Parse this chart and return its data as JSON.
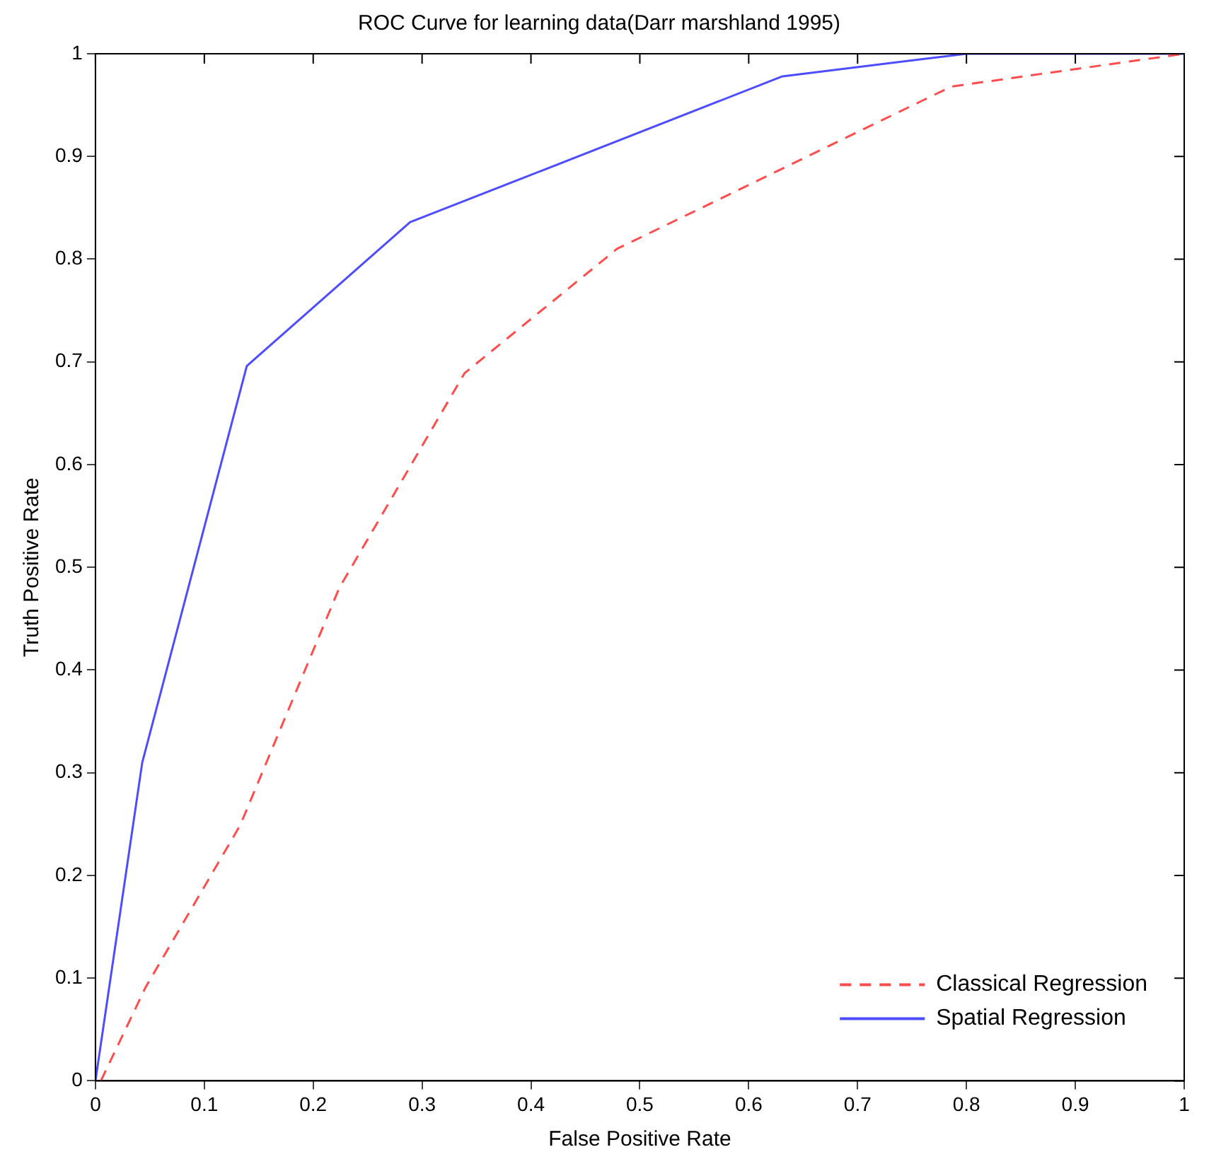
{
  "chart_data": {
    "type": "line",
    "title": "ROC Curve for learning data(Darr marshland 1995)",
    "xlabel": "False Positive Rate",
    "ylabel": "Truth Positive Rate",
    "xlim": [
      0,
      1
    ],
    "ylim": [
      0,
      1
    ],
    "xticks": [
      0,
      0.1,
      0.2,
      0.3,
      0.4,
      0.5,
      0.6,
      0.7,
      0.8,
      0.9,
      1
    ],
    "yticks": [
      0,
      0.1,
      0.2,
      0.3,
      0.4,
      0.5,
      0.6,
      0.7,
      0.8,
      0.9,
      1
    ],
    "grid": false,
    "legend": "bottom right",
    "marker": "none",
    "series": [
      {
        "name": "Classical Regression",
        "color": "#ff4d4d",
        "line_style": "dashed",
        "x": [
          0.005,
          0.046,
          0.133,
          0.224,
          0.339,
          0.479,
          0.786,
          1
        ],
        "values": [
          0,
          0.091,
          0.249,
          0.48,
          0.689,
          0.81,
          0.968,
          1
        ]
      },
      {
        "name": "Spatial Regression",
        "color": "#4d4dff",
        "line_style": "solid",
        "x": [
          0,
          0.043,
          0.139,
          0.289,
          0.631,
          0.8,
          1
        ],
        "values": [
          0,
          0.31,
          0.696,
          0.836,
          0.978,
          1,
          1
        ]
      }
    ]
  }
}
